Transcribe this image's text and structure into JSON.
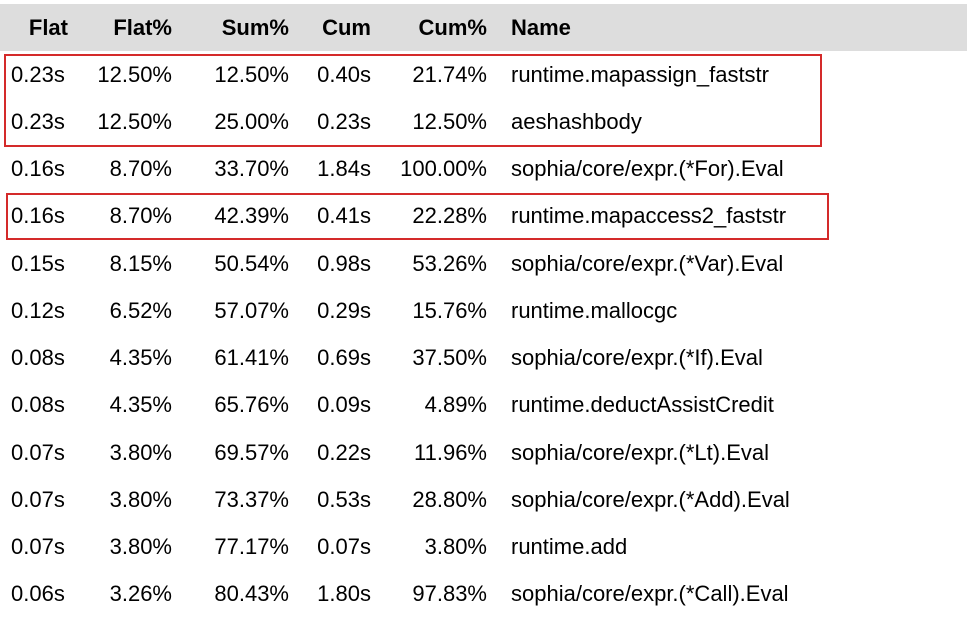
{
  "columns": {
    "flat": "Flat",
    "flat_pct": "Flat%",
    "sum_pct": "Sum%",
    "cum": "Cum",
    "cum_pct": "Cum%",
    "name": "Name"
  },
  "rows": [
    {
      "flat": "0.23s",
      "flat_pct": "12.50%",
      "sum_pct": "12.50%",
      "cum": "0.40s",
      "cum_pct": "21.74%",
      "name": "runtime.mapassign_faststr"
    },
    {
      "flat": "0.23s",
      "flat_pct": "12.50%",
      "sum_pct": "25.00%",
      "cum": "0.23s",
      "cum_pct": "12.50%",
      "name": "aeshashbody"
    },
    {
      "flat": "0.16s",
      "flat_pct": "8.70%",
      "sum_pct": "33.70%",
      "cum": "1.84s",
      "cum_pct": "100.00%",
      "name": "sophia/core/expr.(*For).Eval"
    },
    {
      "flat": "0.16s",
      "flat_pct": "8.70%",
      "sum_pct": "42.39%",
      "cum": "0.41s",
      "cum_pct": "22.28%",
      "name": "runtime.mapaccess2_faststr"
    },
    {
      "flat": "0.15s",
      "flat_pct": "8.15%",
      "sum_pct": "50.54%",
      "cum": "0.98s",
      "cum_pct": "53.26%",
      "name": "sophia/core/expr.(*Var).Eval"
    },
    {
      "flat": "0.12s",
      "flat_pct": "6.52%",
      "sum_pct": "57.07%",
      "cum": "0.29s",
      "cum_pct": "15.76%",
      "name": "runtime.mallocgc"
    },
    {
      "flat": "0.08s",
      "flat_pct": "4.35%",
      "sum_pct": "61.41%",
      "cum": "0.69s",
      "cum_pct": "37.50%",
      "name": "sophia/core/expr.(*If).Eval"
    },
    {
      "flat": "0.08s",
      "flat_pct": "4.35%",
      "sum_pct": "65.76%",
      "cum": "0.09s",
      "cum_pct": "4.89%",
      "name": "runtime.deductAssistCredit"
    },
    {
      "flat": "0.07s",
      "flat_pct": "3.80%",
      "sum_pct": "69.57%",
      "cum": "0.22s",
      "cum_pct": "11.96%",
      "name": "sophia/core/expr.(*Lt).Eval"
    },
    {
      "flat": "0.07s",
      "flat_pct": "3.80%",
      "sum_pct": "73.37%",
      "cum": "0.53s",
      "cum_pct": "28.80%",
      "name": "sophia/core/expr.(*Add).Eval"
    },
    {
      "flat": "0.07s",
      "flat_pct": "3.80%",
      "sum_pct": "77.17%",
      "cum": "0.07s",
      "cum_pct": "3.80%",
      "name": "runtime.add"
    },
    {
      "flat": "0.06s",
      "flat_pct": "3.26%",
      "sum_pct": "80.43%",
      "cum": "1.80s",
      "cum_pct": "97.83%",
      "name": "sophia/core/expr.(*Call).Eval"
    }
  ],
  "highlight_color": "#d42a2a",
  "header_bg": "#dddddd"
}
